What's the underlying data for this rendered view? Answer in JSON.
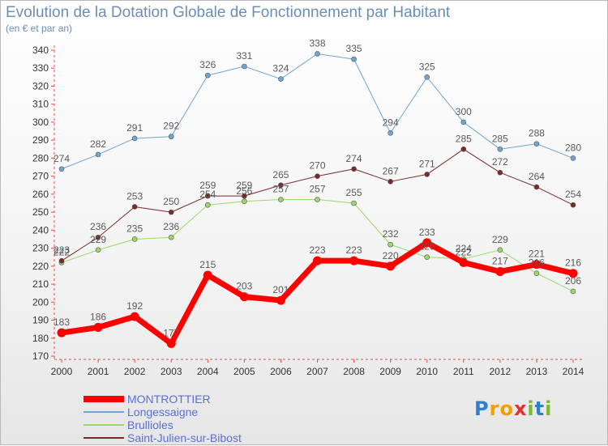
{
  "title": "Evolution de la Dotation Globale de Fonctionnement par Habitant",
  "subtitle": "(en € et par an)",
  "logo": {
    "text": "Proxiti",
    "letters": [
      {
        "ch": "P",
        "color": "#2f7fd0"
      },
      {
        "ch": "r",
        "color": "#f2a000"
      },
      {
        "ch": "o",
        "color": "#f2a000"
      },
      {
        "ch": "x",
        "color": "#e23030"
      },
      {
        "ch": "i",
        "color": "#7bbb2c"
      },
      {
        "ch": "t",
        "color": "#2f7fd0"
      },
      {
        "ch": "i",
        "color": "#7bbb2c"
      }
    ]
  },
  "chart_data": {
    "type": "line",
    "x": [
      "2000",
      "2001",
      "2002",
      "2003",
      "2004",
      "2005",
      "2006",
      "2007",
      "2008",
      "2009",
      "2010",
      "2011",
      "2012",
      "2013",
      "2014"
    ],
    "ylim": [
      170,
      340
    ],
    "ytick_step": 10,
    "grid": false,
    "legend_position": "bottom-left",
    "series": [
      {
        "name": "MONTROTTIER",
        "color": "#ff0000",
        "label_color": "#5a5a5a",
        "width": 7,
        "values": [
          183,
          186,
          192,
          177,
          215,
          203,
          201,
          223,
          223,
          220,
          233,
          222,
          217,
          221,
          216
        ]
      },
      {
        "name": "Longessaigne",
        "color": "#6fa5d7",
        "label_color": "#5a5a5a",
        "width": 1,
        "values": [
          274,
          282,
          291,
          292,
          326,
          331,
          324,
          338,
          335,
          294,
          325,
          300,
          285,
          288,
          280
        ]
      },
      {
        "name": "Brullioles",
        "color": "#9ad86a",
        "label_color": "#5a5a5a",
        "width": 1,
        "values": [
          222,
          229,
          235,
          236,
          254,
          256,
          257,
          257,
          255,
          232,
          225,
          224,
          229,
          216,
          206
        ]
      },
      {
        "name": "Saint-Julien-sur-Bibost",
        "color": "#7a2a2a",
        "label_color": "#5a5a5a",
        "width": 1,
        "values": [
          223,
          236,
          253,
          250,
          259,
          259,
          265,
          270,
          274,
          267,
          271,
          285,
          272,
          264,
          254
        ]
      }
    ]
  }
}
